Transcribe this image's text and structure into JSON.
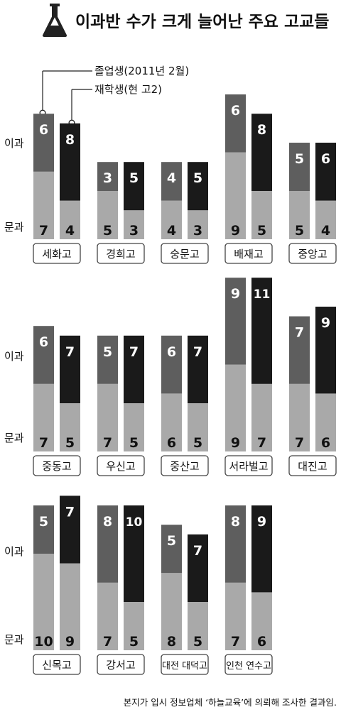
{
  "title": "이과반 수가 크게 늘어난 주요 고교들",
  "icon": "flask-icon",
  "legend": {
    "graduate": "졸업생(2011년 2월)",
    "current": "재학생(현 고2)"
  },
  "row_labels": {
    "science": "이과",
    "liberal": "문과"
  },
  "source": "본지가 입시 정보업체 ‘하늘교육’에 의뢰해 조사한 결과임.",
  "colors": {
    "liberal": "#a9a9a9",
    "science_graduate": "#5e5e5e",
    "science_current": "#1a1a1a",
    "label_border": "#444444"
  },
  "chart_data": {
    "type": "bar",
    "stacked": true,
    "unit": "학급 수",
    "series_order": [
      "문과",
      "이과"
    ],
    "schools": [
      {
        "name": "세화고",
        "graduate": {
          "liberal": 7,
          "science": 6
        },
        "current": {
          "liberal": 4,
          "science": 8
        }
      },
      {
        "name": "경희고",
        "graduate": {
          "liberal": 5,
          "science": 3
        },
        "current": {
          "liberal": 3,
          "science": 5
        }
      },
      {
        "name": "숭문고",
        "graduate": {
          "liberal": 4,
          "science": 4
        },
        "current": {
          "liberal": 3,
          "science": 5
        }
      },
      {
        "name": "배재고",
        "graduate": {
          "liberal": 9,
          "science": 6
        },
        "current": {
          "liberal": 5,
          "science": 8
        }
      },
      {
        "name": "중앙고",
        "graduate": {
          "liberal": 5,
          "science": 5
        },
        "current": {
          "liberal": 4,
          "science": 6
        }
      },
      {
        "name": "중동고",
        "graduate": {
          "liberal": 7,
          "science": 6
        },
        "current": {
          "liberal": 5,
          "science": 7
        }
      },
      {
        "name": "우신고",
        "graduate": {
          "liberal": 7,
          "science": 5
        },
        "current": {
          "liberal": 5,
          "science": 7
        }
      },
      {
        "name": "중산고",
        "graduate": {
          "liberal": 6,
          "science": 6
        },
        "current": {
          "liberal": 5,
          "science": 7
        }
      },
      {
        "name": "서라벌고",
        "graduate": {
          "liberal": 9,
          "science": 9
        },
        "current": {
          "liberal": 7,
          "science": 11
        }
      },
      {
        "name": "대진고",
        "graduate": {
          "liberal": 7,
          "science": 7
        },
        "current": {
          "liberal": 6,
          "science": 9
        }
      },
      {
        "name": "신목고",
        "graduate": {
          "liberal": 10,
          "science": 5
        },
        "current": {
          "liberal": 9,
          "science": 7
        }
      },
      {
        "name": "강서고",
        "graduate": {
          "liberal": 7,
          "science": 8
        },
        "current": {
          "liberal": 5,
          "science": 10
        }
      },
      {
        "name": "대전 대덕고",
        "graduate": {
          "liberal": 8,
          "science": 5
        },
        "current": {
          "liberal": 5,
          "science": 7
        }
      },
      {
        "name": "인천 연수고",
        "graduate": {
          "liberal": 7,
          "science": 8
        },
        "current": {
          "liberal": 6,
          "science": 9
        }
      }
    ]
  }
}
